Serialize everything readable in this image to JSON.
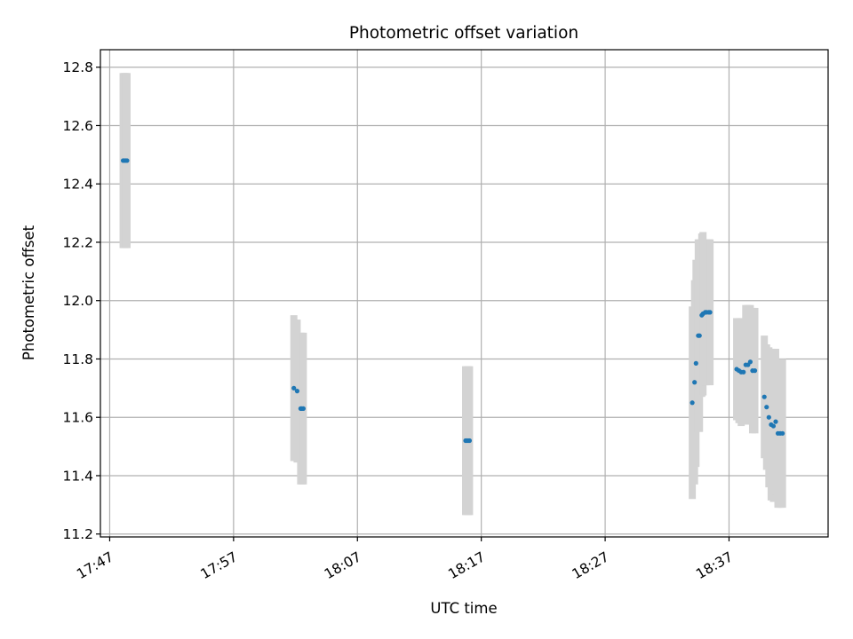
{
  "chart_data": {
    "type": "scatter",
    "title": "Photometric offset variation",
    "xlabel": "UTC time",
    "ylabel": "Photometric offset",
    "xlim": [
      "17:46:15",
      "18:45:00"
    ],
    "ylim": [
      11.19,
      12.86
    ],
    "grid": true,
    "x_ticks": [
      "17:47",
      "17:57",
      "18:07",
      "18:17",
      "18:27",
      "18:37"
    ],
    "y_ticks": [
      "11.2",
      "11.4",
      "11.6",
      "11.8",
      "12.0",
      "12.2",
      "12.4",
      "12.6",
      "12.8"
    ],
    "colors": {
      "points": "#1f77b4",
      "error_bars": "#d3d3d3",
      "grid": "#b0b0b0",
      "axes": "#000000"
    },
    "series": [
      {
        "x": [
          "17:48:05",
          "17:48:11",
          "17:48:17",
          "17:48:24",
          "18:01:52",
          "18:02:08",
          "18:02:25",
          "18:02:31",
          "18:02:38",
          "18:15:44",
          "18:15:50",
          "18:15:57",
          "18:16:03",
          "18:34:02",
          "18:34:13",
          "18:34:20",
          "18:34:31",
          "18:34:37",
          "18:34:48",
          "18:34:54",
          "18:35:05",
          "18:35:11",
          "18:35:22",
          "18:35:28",
          "18:37:37",
          "18:37:48",
          "18:37:59",
          "18:38:10",
          "18:38:21",
          "18:38:32",
          "18:38:43",
          "18:38:54",
          "18:39:05",
          "18:39:51",
          "18:40:02",
          "18:40:13",
          "18:40:24",
          "18:40:35",
          "18:40:46",
          "18:40:57",
          "18:41:08",
          "18:41:19"
        ],
        "y": [
          12.48,
          12.48,
          12.48,
          12.48,
          11.7,
          11.69,
          11.63,
          11.63,
          11.63,
          11.52,
          11.52,
          11.52,
          11.52,
          11.65,
          11.72,
          11.785,
          11.88,
          11.88,
          11.95,
          11.955,
          11.96,
          11.96,
          11.96,
          11.96,
          11.765,
          11.76,
          11.755,
          11.755,
          11.78,
          11.78,
          11.79,
          11.76,
          11.76,
          11.67,
          11.635,
          11.6,
          11.575,
          11.57,
          11.585,
          11.545,
          11.545,
          11.545
        ],
        "error": [
          0.3,
          0.3,
          0.3,
          0.3,
          0.25,
          0.245,
          0.26,
          0.26,
          0.26,
          0.255,
          0.255,
          0.255,
          0.255,
          0.33,
          0.35,
          0.355,
          0.33,
          0.33,
          0.28,
          0.28,
          0.25,
          0.25,
          0.25,
          0.25,
          0.175,
          0.18,
          0.185,
          0.18,
          0.205,
          0.205,
          0.195,
          0.215,
          0.215,
          0.21,
          0.215,
          0.24,
          0.26,
          0.26,
          0.25,
          0.255,
          0.255,
          0.255
        ]
      }
    ]
  }
}
